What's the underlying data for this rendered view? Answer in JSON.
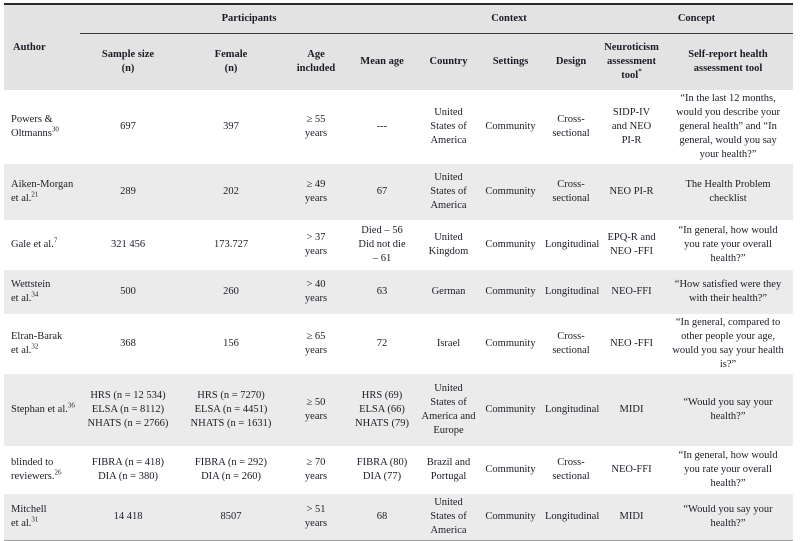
{
  "theme": {
    "header_bg": "#e3e3e3",
    "stripe_bg": "#ebebeb",
    "text_color": "#1c1c26",
    "top_rule": "#2a2a2a"
  },
  "table": {
    "group_headers": {
      "participants": "Participants",
      "context": "Context",
      "concept": "Concept"
    },
    "columns": {
      "author": "Author",
      "sample_size": "Sample size\n(n)",
      "female": "Female\n(n)",
      "age_included": "Age\nincluded",
      "mean_age": "Mean age",
      "country": "Country",
      "settings": "Settings",
      "design": "Design",
      "neuroticism_tool": "Neuroticism\nassessment\ntool",
      "neuroticism_tool_note": "*",
      "health_tool": "Self-report health\nassessment tool"
    },
    "rows": [
      {
        "author": {
          "name": "Powers &\nOltmanns",
          "ref": "30"
        },
        "sample_size": "697",
        "female": "397",
        "age_included": "≥ 55\nyears",
        "mean_age": "---",
        "country": "United\nStates of\nAmerica",
        "settings": "Community",
        "design": "Cross-\nsectional",
        "neuroticism_tool": "SIDP-IV\nand NEO\nPI-R",
        "health_tool": "“In the last 12 months,\nwould you describe your\ngeneral health” and “In\ngeneral, would you say\nyour health?”"
      },
      {
        "author": {
          "name": "Aiken-Morgan\net al.",
          "ref": "21"
        },
        "sample_size": "289",
        "female": "202",
        "age_included": "≥ 49\nyears",
        "mean_age": "67",
        "country": "United\nStates of\nAmerica",
        "settings": "Community",
        "design": "Cross-\nsectional",
        "neuroticism_tool": "NEO PI-R",
        "health_tool": "The Health Problem\nchecklist"
      },
      {
        "author": {
          "name": "Gale et al.",
          "ref": "7"
        },
        "sample_size": "321 456",
        "female": "173.727",
        "age_included": "> 37\nyears",
        "mean_age": "Died – 56\nDid not die\n– 61",
        "country": "United\nKingdom",
        "settings": "Community",
        "design": "Longitudinal",
        "neuroticism_tool": "EPQ-R and\nNEO -FFI",
        "health_tool": "“In general, how would\nyou rate your overall\nhealth?”"
      },
      {
        "author": {
          "name": "Wettstein\net al.",
          "ref": "34"
        },
        "sample_size": "500",
        "female": "260",
        "age_included": "> 40\nyears",
        "mean_age": "63",
        "country": "German",
        "settings": "Community",
        "design": "Longitudinal",
        "neuroticism_tool": "NEO-FFI",
        "health_tool": "“How satisfied were they\nwith their health?”"
      },
      {
        "author": {
          "name": "Elran-Barak\net al.",
          "ref": "32"
        },
        "sample_size": "368",
        "female": "156",
        "age_included": "≥ 65\nyears",
        "mean_age": "72",
        "country": "Israel",
        "settings": "Community",
        "design": "Cross-\nsectional",
        "neuroticism_tool": "NEO -FFI",
        "health_tool": "“In general, compared to\nother people your age,\nwould you say your health\nis?”"
      },
      {
        "author": {
          "name": "Stephan et al.",
          "ref": "36"
        },
        "sample_size": "HRS (n = 12 534)\nELSA (n = 8112)\nNHATS (n = 2766)",
        "female": "HRS (n = 7270)\nELSA (n = 4451)\nNHATS (n = 1631)",
        "age_included": "≥ 50\nyears",
        "mean_age": "HRS (69)\nELSA (66)\nNHATS (79)",
        "country": "United\nStates of\nAmerica and\nEurope",
        "settings": "Community",
        "design": "Longitudinal",
        "neuroticism_tool": "MIDI",
        "health_tool": "“Would you say your\nhealth?”"
      },
      {
        "author": {
          "name": "blinded to\nreviewers.",
          "ref": "26"
        },
        "sample_size": "FIBRA (n = 418)\nDIA (n = 380)",
        "female": "FIBRA (n = 292)\nDIA (n = 260)",
        "age_included": "≥ 70\nyears",
        "mean_age": "FIBRA (80)\nDIA (77)",
        "country": "Brazil and\nPortugal",
        "settings": "Community",
        "design": "Cross-\nsectional",
        "neuroticism_tool": "NEO-FFI",
        "health_tool": "“In general, how would\nyou rate your overall\nhealth?”"
      },
      {
        "author": {
          "name": "Mitchell\net al.",
          "ref": "31"
        },
        "sample_size": "14 418",
        "female": "8507",
        "age_included": "> 51\nyears",
        "mean_age": "68",
        "country": "United\nStates of\nAmerica",
        "settings": "Community",
        "design": "Longitudinal",
        "neuroticism_tool": "MIDI",
        "health_tool": "“Would you say your\nhealth?”"
      }
    ]
  }
}
